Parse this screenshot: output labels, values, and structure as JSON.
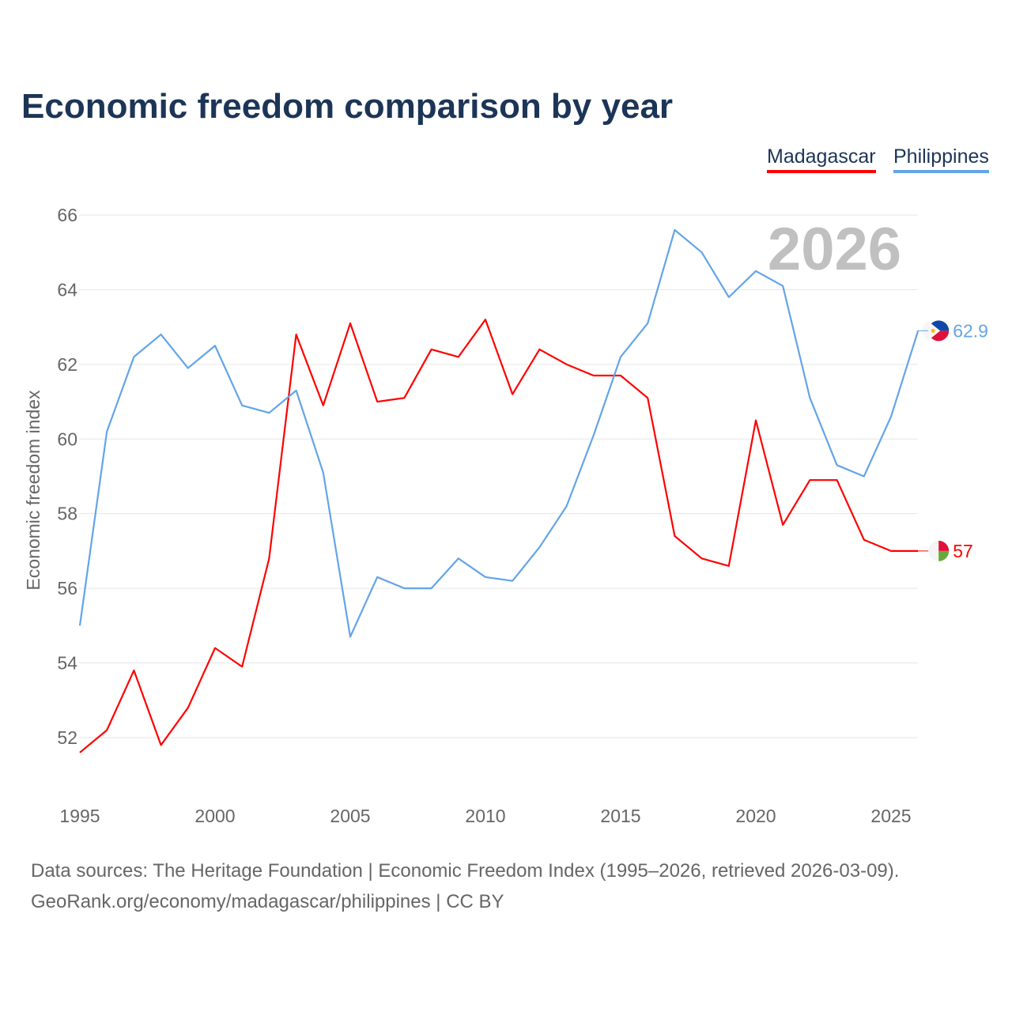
{
  "chart_data": {
    "type": "line",
    "title": "Economic freedom comparison by year",
    "xlabel": "",
    "ylabel": "Economic freedom index",
    "ylim": [
      50.5,
      66
    ],
    "xlim": [
      1995,
      2026
    ],
    "yticks": [
      52,
      54,
      56,
      58,
      60,
      62,
      64,
      66
    ],
    "xticks": [
      1995,
      2000,
      2005,
      2010,
      2015,
      2020,
      2025
    ],
    "grid": true,
    "legend_position": "top-right",
    "year_watermark": "2026",
    "x": [
      1995,
      1996,
      1997,
      1998,
      1999,
      2000,
      2001,
      2002,
      2003,
      2004,
      2005,
      2006,
      2007,
      2008,
      2009,
      2010,
      2011,
      2012,
      2013,
      2014,
      2015,
      2016,
      2017,
      2018,
      2019,
      2020,
      2021,
      2022,
      2023,
      2024,
      2025,
      2026
    ],
    "series": [
      {
        "name": "Madagascar",
        "color": "#ff0000",
        "end_label": "57",
        "flag": "madagascar-flag",
        "values": [
          51.6,
          52.2,
          53.8,
          51.8,
          52.8,
          54.4,
          53.9,
          56.8,
          62.8,
          60.9,
          63.1,
          61.0,
          61.1,
          62.4,
          62.2,
          63.2,
          61.2,
          62.4,
          62.0,
          61.7,
          61.7,
          61.1,
          57.4,
          56.8,
          56.6,
          60.5,
          57.7,
          58.9,
          58.9,
          57.3,
          57.0,
          57.0
        ]
      },
      {
        "name": "Philippines",
        "color": "#63a4e8",
        "end_label": "62.9",
        "flag": "philippines-flag",
        "values": [
          55.0,
          60.2,
          62.2,
          62.8,
          61.9,
          62.5,
          60.9,
          60.7,
          61.3,
          59.1,
          54.7,
          56.3,
          56.0,
          56.0,
          56.8,
          56.3,
          56.2,
          57.1,
          58.2,
          60.1,
          62.2,
          63.1,
          65.6,
          65.0,
          63.8,
          64.5,
          64.1,
          61.1,
          59.3,
          59.0,
          60.6,
          62.9
        ]
      }
    ]
  },
  "footer": {
    "line1": "Data sources: The Heritage Foundation | Economic Freedom Index (1995–2026, retrieved 2026-03-09).",
    "line2": "GeoRank.org/economy/madagascar/philippines | CC BY"
  }
}
